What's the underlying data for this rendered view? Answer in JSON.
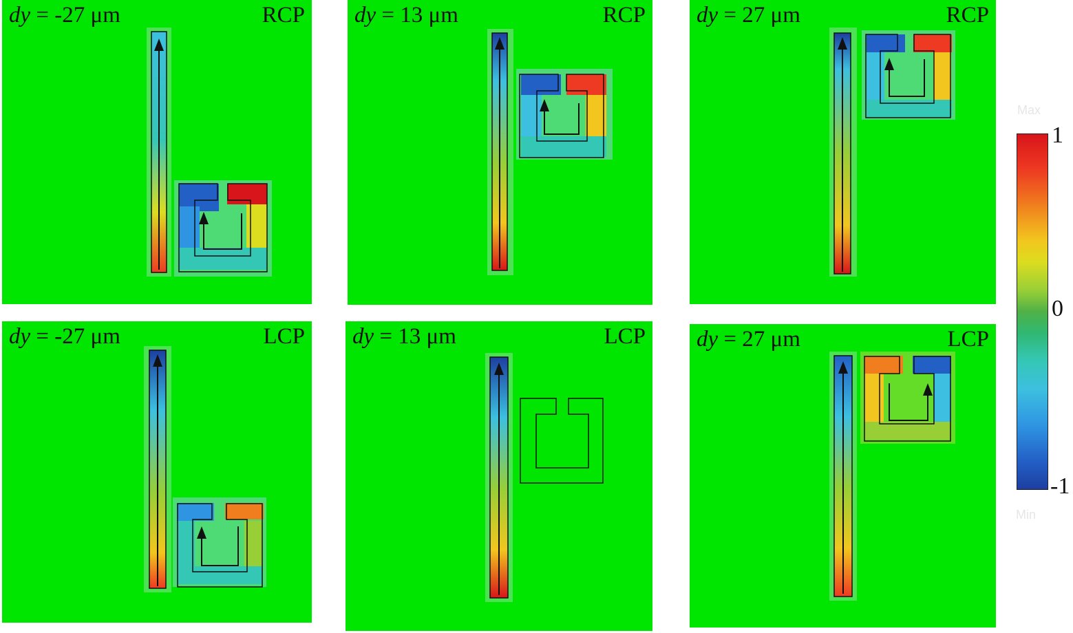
{
  "panels": [
    {
      "dy_var": "dy",
      "dy_value": "= -27 μm",
      "polarization": "RCP"
    },
    {
      "dy_var": "dy",
      "dy_value": "= 13 μm",
      "polarization": "RCP"
    },
    {
      "dy_var": "dy",
      "dy_value": "= 27 μm",
      "polarization": "RCP"
    },
    {
      "dy_var": "dy",
      "dy_value": "= -27 μm",
      "polarization": "LCP"
    },
    {
      "dy_var": "dy",
      "dy_value": "= 13 μm",
      "polarization": "LCP"
    },
    {
      "dy_var": "dy",
      "dy_value": "= 27 μm",
      "polarization": "LCP"
    }
  ],
  "colorbar": {
    "max_label": "1",
    "mid_label": "0",
    "min_label": "-1",
    "ghost_max": "Max",
    "ghost_min": "Min"
  },
  "colors": {
    "background_field": "#00e600",
    "max": "#d8151a",
    "min": "#1d3fa1",
    "outline": "#111111"
  }
}
